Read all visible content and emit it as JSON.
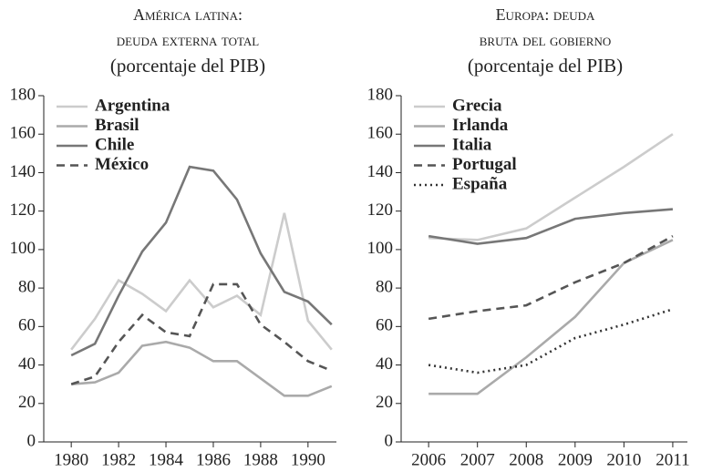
{
  "chart_data": [
    {
      "type": "line",
      "title": [
        "América latina:",
        "deuda externa total",
        "(porcentaje del PIB)"
      ],
      "x": [
        1980,
        1981,
        1982,
        1983,
        1984,
        1985,
        1986,
        1987,
        1988,
        1989,
        1990,
        1991
      ],
      "xlim": [
        1978.8,
        1991.2
      ],
      "xticks": [
        1980,
        1982,
        1984,
        1986,
        1988,
        1990
      ],
      "ylim": [
        0,
        180
      ],
      "yticks": [
        0,
        20,
        40,
        60,
        80,
        100,
        120,
        140,
        160,
        180
      ],
      "legend": "top-left",
      "series": [
        {
          "name": "Argentina",
          "color": "#cccccc",
          "dash": "solid",
          "values": [
            48,
            64,
            84,
            77,
            68,
            84,
            70,
            76,
            66,
            119,
            63,
            48
          ]
        },
        {
          "name": "Brasil",
          "color": "#aaaaaa",
          "dash": "solid",
          "values": [
            30,
            31,
            36,
            50,
            52,
            49,
            42,
            42,
            33,
            24,
            24,
            29
          ]
        },
        {
          "name": "Chile",
          "color": "#777777",
          "dash": "solid",
          "values": [
            45,
            51,
            76,
            99,
            114,
            143,
            141,
            126,
            98,
            78,
            73,
            61
          ]
        },
        {
          "name": "México",
          "color": "#555555",
          "dash": "dashed",
          "values": [
            30,
            34,
            52,
            66,
            57,
            55,
            82,
            82,
            61,
            52,
            42,
            37
          ]
        }
      ]
    },
    {
      "type": "line",
      "title": [
        "Europa: deuda",
        "bruta del gobierno",
        "(porcentaje del PIB)"
      ],
      "x": [
        2006,
        2007,
        2008,
        2009,
        2010,
        2011
      ],
      "xlim": [
        2005.4,
        2011.3
      ],
      "xticks": [
        2006,
        2007,
        2008,
        2009,
        2010,
        2011
      ],
      "ylim": [
        0,
        180
      ],
      "yticks": [
        0,
        20,
        40,
        60,
        80,
        100,
        120,
        140,
        160,
        180
      ],
      "legend": "top-left",
      "series": [
        {
          "name": "Grecia",
          "color": "#cccccc",
          "dash": "solid",
          "values": [
            106,
            105,
            111,
            127,
            143,
            160
          ]
        },
        {
          "name": "Irlanda",
          "color": "#aaaaaa",
          "dash": "solid",
          "values": [
            25,
            25,
            44,
            65,
            93,
            105
          ]
        },
        {
          "name": "Italia",
          "color": "#777777",
          "dash": "solid",
          "values": [
            107,
            103,
            106,
            116,
            119,
            121
          ]
        },
        {
          "name": "Portugal",
          "color": "#555555",
          "dash": "dashed",
          "values": [
            64,
            68,
            71,
            83,
            93,
            107
          ]
        },
        {
          "name": "España",
          "color": "#333333",
          "dash": "dotted",
          "values": [
            40,
            36,
            40,
            54,
            61,
            69
          ]
        }
      ]
    }
  ]
}
